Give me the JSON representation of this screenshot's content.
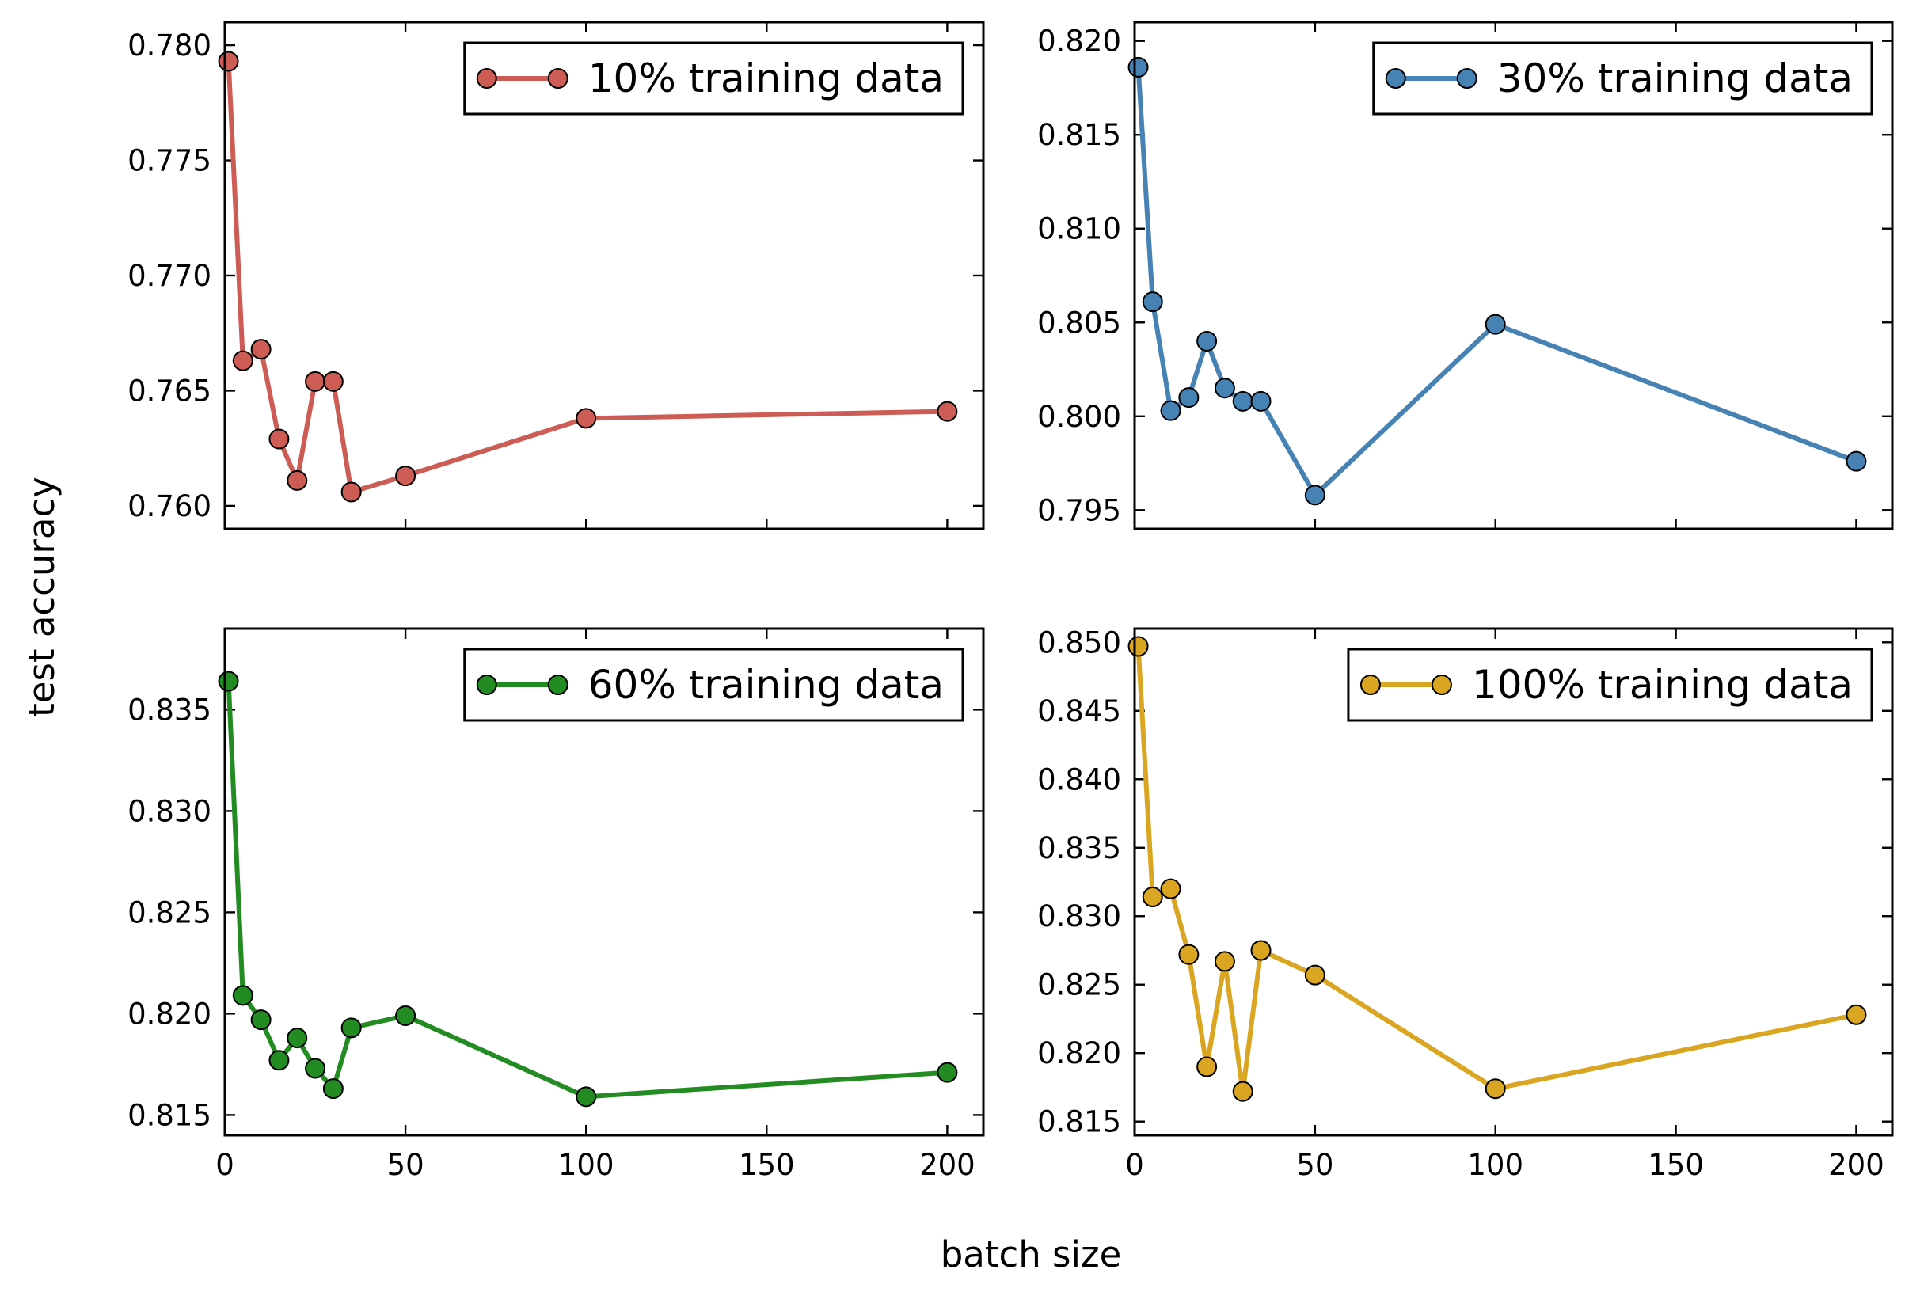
{
  "figure": {
    "ylabel": "test accuracy",
    "xlabel": "batch size"
  },
  "chart_data": [
    {
      "type": "line",
      "series": [
        {
          "name": "10% training data",
          "color": "#cd5c55",
          "x": [
            1,
            5,
            10,
            15,
            20,
            25,
            30,
            35,
            50,
            100,
            200
          ],
          "y": [
            0.7793,
            0.7663,
            0.7668,
            0.7629,
            0.7611,
            0.7654,
            0.7654,
            0.7606,
            0.7613,
            0.7638,
            0.7641
          ]
        }
      ],
      "xlim": [
        0,
        210
      ],
      "ylim": [
        0.759,
        0.781
      ],
      "xticks": [
        0,
        50,
        100,
        150,
        200
      ],
      "yticks": [
        0.76,
        0.765,
        0.77,
        0.775,
        0.78
      ],
      "ytick_labels": [
        "0.760",
        "0.765",
        "0.770",
        "0.775",
        "0.780"
      ],
      "show_xtick_labels": false,
      "legend_loc": "upper right",
      "grid": false
    },
    {
      "type": "line",
      "series": [
        {
          "name": "30% training data",
          "color": "#4682b4",
          "x": [
            1,
            5,
            10,
            15,
            20,
            25,
            30,
            35,
            50,
            100,
            200
          ],
          "y": [
            0.8186,
            0.8061,
            0.8003,
            0.801,
            0.804,
            0.8015,
            0.8008,
            0.8008,
            0.7958,
            0.8049,
            0.7976
          ]
        }
      ],
      "xlim": [
        0,
        210
      ],
      "ylim": [
        0.794,
        0.821
      ],
      "xticks": [
        0,
        50,
        100,
        150,
        200
      ],
      "yticks": [
        0.795,
        0.8,
        0.805,
        0.81,
        0.815,
        0.82
      ],
      "ytick_labels": [
        "0.795",
        "0.800",
        "0.805",
        "0.810",
        "0.815",
        "0.820"
      ],
      "show_xtick_labels": false,
      "legend_loc": "upper right",
      "grid": false
    },
    {
      "type": "line",
      "series": [
        {
          "name": "60% training data",
          "color": "#228b22",
          "x": [
            1,
            5,
            10,
            15,
            20,
            25,
            30,
            35,
            50,
            100,
            200
          ],
          "y": [
            0.8364,
            0.8209,
            0.8197,
            0.8177,
            0.8188,
            0.8173,
            0.8163,
            0.8193,
            0.8199,
            0.8159,
            0.8171
          ]
        }
      ],
      "xlim": [
        0,
        210
      ],
      "ylim": [
        0.814,
        0.839
      ],
      "xticks": [
        0,
        50,
        100,
        150,
        200
      ],
      "xtick_labels": [
        "0",
        "50",
        "100",
        "150",
        "200"
      ],
      "yticks": [
        0.815,
        0.82,
        0.825,
        0.83,
        0.835
      ],
      "ytick_labels": [
        "0.815",
        "0.820",
        "0.825",
        "0.830",
        "0.835"
      ],
      "show_xtick_labels": true,
      "legend_loc": "upper right",
      "grid": false
    },
    {
      "type": "line",
      "series": [
        {
          "name": "100% training data",
          "color": "#daa520",
          "x": [
            1,
            5,
            10,
            15,
            20,
            25,
            30,
            35,
            50,
            100,
            200
          ],
          "y": [
            0.8497,
            0.8314,
            0.832,
            0.8272,
            0.819,
            0.8267,
            0.8172,
            0.8275,
            0.8257,
            0.8174,
            0.8228
          ]
        }
      ],
      "xlim": [
        0,
        210
      ],
      "ylim": [
        0.814,
        0.851
      ],
      "xticks": [
        0,
        50,
        100,
        150,
        200
      ],
      "xtick_labels": [
        "0",
        "50",
        "100",
        "150",
        "200"
      ],
      "yticks": [
        0.815,
        0.82,
        0.825,
        0.83,
        0.835,
        0.84,
        0.845,
        0.85
      ],
      "ytick_labels": [
        "0.815",
        "0.820",
        "0.825",
        "0.830",
        "0.835",
        "0.840",
        "0.845",
        "0.850"
      ],
      "show_xtick_labels": true,
      "legend_loc": "upper right",
      "grid": false
    }
  ]
}
